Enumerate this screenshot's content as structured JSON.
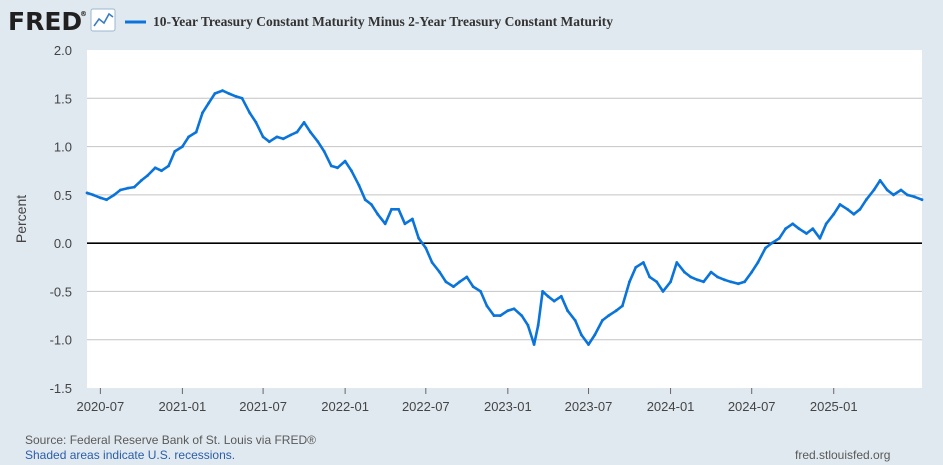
{
  "header": {
    "logo": "FRED",
    "logo_mark": "®",
    "logo_icon": "line-chart-icon",
    "series_title": "10-Year Treasury Constant Maturity Minus 2-Year Treasury Constant Maturity"
  },
  "colors": {
    "background": "#e1e9f0",
    "plot_background": "#ffffff",
    "series": "#0a74da",
    "grid": "#c0c0c0",
    "zero_line": "#000000",
    "logo": "#202020"
  },
  "chart_data": {
    "type": "line",
    "title": "10-Year Treasury Constant Maturity Minus 2-Year Treasury Constant Maturity",
    "ylabel": "Percent",
    "xlabel": "",
    "ylim": [
      -1.5,
      2.0
    ],
    "xlim": [
      "2020-06-01",
      "2025-07-18"
    ],
    "yticks": [
      "2.0",
      "1.5",
      "1.0",
      "0.5",
      "0.0",
      "-0.5",
      "-1.0",
      "-1.5"
    ],
    "xticks": [
      "2020-07",
      "2021-01",
      "2021-07",
      "2022-01",
      "2022-07",
      "2023-01",
      "2023-07",
      "2024-01",
      "2024-07",
      "2025-01"
    ],
    "grid": true,
    "series": [
      {
        "name": "10-Year Treasury Constant Maturity Minus 2-Year Treasury Constant Maturity",
        "x": [
          "2020-06-01",
          "2020-06-15",
          "2020-07-01",
          "2020-07-15",
          "2020-08-01",
          "2020-08-15",
          "2020-09-01",
          "2020-09-15",
          "2020-10-01",
          "2020-10-15",
          "2020-11-01",
          "2020-11-15",
          "2020-12-01",
          "2020-12-15",
          "2021-01-01",
          "2021-01-15",
          "2021-02-01",
          "2021-02-15",
          "2021-03-01",
          "2021-03-15",
          "2021-04-01",
          "2021-04-15",
          "2021-05-01",
          "2021-05-15",
          "2021-06-01",
          "2021-06-15",
          "2021-07-01",
          "2021-07-15",
          "2021-08-01",
          "2021-08-15",
          "2021-09-01",
          "2021-09-15",
          "2021-10-01",
          "2021-10-15",
          "2021-11-01",
          "2021-11-15",
          "2021-12-01",
          "2021-12-15",
          "2022-01-01",
          "2022-01-15",
          "2022-02-01",
          "2022-02-15",
          "2022-03-01",
          "2022-03-15",
          "2022-04-01",
          "2022-04-15",
          "2022-05-01",
          "2022-05-15",
          "2022-06-01",
          "2022-06-15",
          "2022-07-01",
          "2022-07-15",
          "2022-08-01",
          "2022-08-15",
          "2022-09-01",
          "2022-09-15",
          "2022-10-01",
          "2022-10-15",
          "2022-11-01",
          "2022-11-15",
          "2022-12-01",
          "2022-12-15",
          "2023-01-01",
          "2023-01-15",
          "2023-02-01",
          "2023-02-15",
          "2023-03-01",
          "2023-03-10",
          "2023-03-20",
          "2023-04-01",
          "2023-04-15",
          "2023-05-01",
          "2023-05-15",
          "2023-06-01",
          "2023-06-15",
          "2023-07-01",
          "2023-07-15",
          "2023-08-01",
          "2023-08-15",
          "2023-09-01",
          "2023-09-15",
          "2023-10-01",
          "2023-10-15",
          "2023-11-01",
          "2023-11-15",
          "2023-12-01",
          "2023-12-15",
          "2024-01-01",
          "2024-01-15",
          "2024-02-01",
          "2024-02-15",
          "2024-03-01",
          "2024-03-15",
          "2024-04-01",
          "2024-04-15",
          "2024-05-01",
          "2024-05-15",
          "2024-06-01",
          "2024-06-15",
          "2024-07-01",
          "2024-07-15",
          "2024-08-01",
          "2024-08-15",
          "2024-09-01",
          "2024-09-15",
          "2024-10-01",
          "2024-10-15",
          "2024-11-01",
          "2024-11-15",
          "2024-12-01",
          "2024-12-15",
          "2025-01-01",
          "2025-01-15",
          "2025-02-01",
          "2025-02-15",
          "2025-03-01",
          "2025-03-15",
          "2025-04-01",
          "2025-04-15",
          "2025-05-01",
          "2025-05-15",
          "2025-06-01",
          "2025-06-15",
          "2025-07-01",
          "2025-07-18"
        ],
        "values": [
          0.52,
          0.5,
          0.47,
          0.45,
          0.5,
          0.55,
          0.57,
          0.58,
          0.65,
          0.7,
          0.78,
          0.75,
          0.8,
          0.95,
          1.0,
          1.1,
          1.15,
          1.35,
          1.45,
          1.55,
          1.58,
          1.55,
          1.52,
          1.5,
          1.35,
          1.25,
          1.1,
          1.05,
          1.1,
          1.08,
          1.12,
          1.15,
          1.25,
          1.15,
          1.05,
          0.95,
          0.8,
          0.78,
          0.85,
          0.75,
          0.6,
          0.45,
          0.4,
          0.3,
          0.2,
          0.35,
          0.35,
          0.2,
          0.25,
          0.05,
          -0.05,
          -0.2,
          -0.3,
          -0.4,
          -0.45,
          -0.4,
          -0.35,
          -0.45,
          -0.5,
          -0.65,
          -0.75,
          -0.75,
          -0.7,
          -0.68,
          -0.75,
          -0.85,
          -1.05,
          -0.85,
          -0.5,
          -0.55,
          -0.6,
          -0.55,
          -0.7,
          -0.8,
          -0.95,
          -1.05,
          -0.95,
          -0.8,
          -0.75,
          -0.7,
          -0.65,
          -0.4,
          -0.25,
          -0.2,
          -0.35,
          -0.4,
          -0.5,
          -0.4,
          -0.2,
          -0.3,
          -0.35,
          -0.38,
          -0.4,
          -0.3,
          -0.35,
          -0.38,
          -0.4,
          -0.42,
          -0.4,
          -0.3,
          -0.2,
          -0.05,
          0.0,
          0.05,
          0.15,
          0.2,
          0.15,
          0.1,
          0.15,
          0.05,
          0.2,
          0.3,
          0.4,
          0.35,
          0.3,
          0.35,
          0.45,
          0.55,
          0.65,
          0.55,
          0.5,
          0.55,
          0.5,
          0.48,
          0.45
        ]
      }
    ]
  },
  "footer": {
    "source": "Source: Federal Reserve Bank of St. Louis via FRED®",
    "recessions": "Shaded areas indicate U.S. recessions.",
    "url": "fred.stlouisfed.org"
  }
}
